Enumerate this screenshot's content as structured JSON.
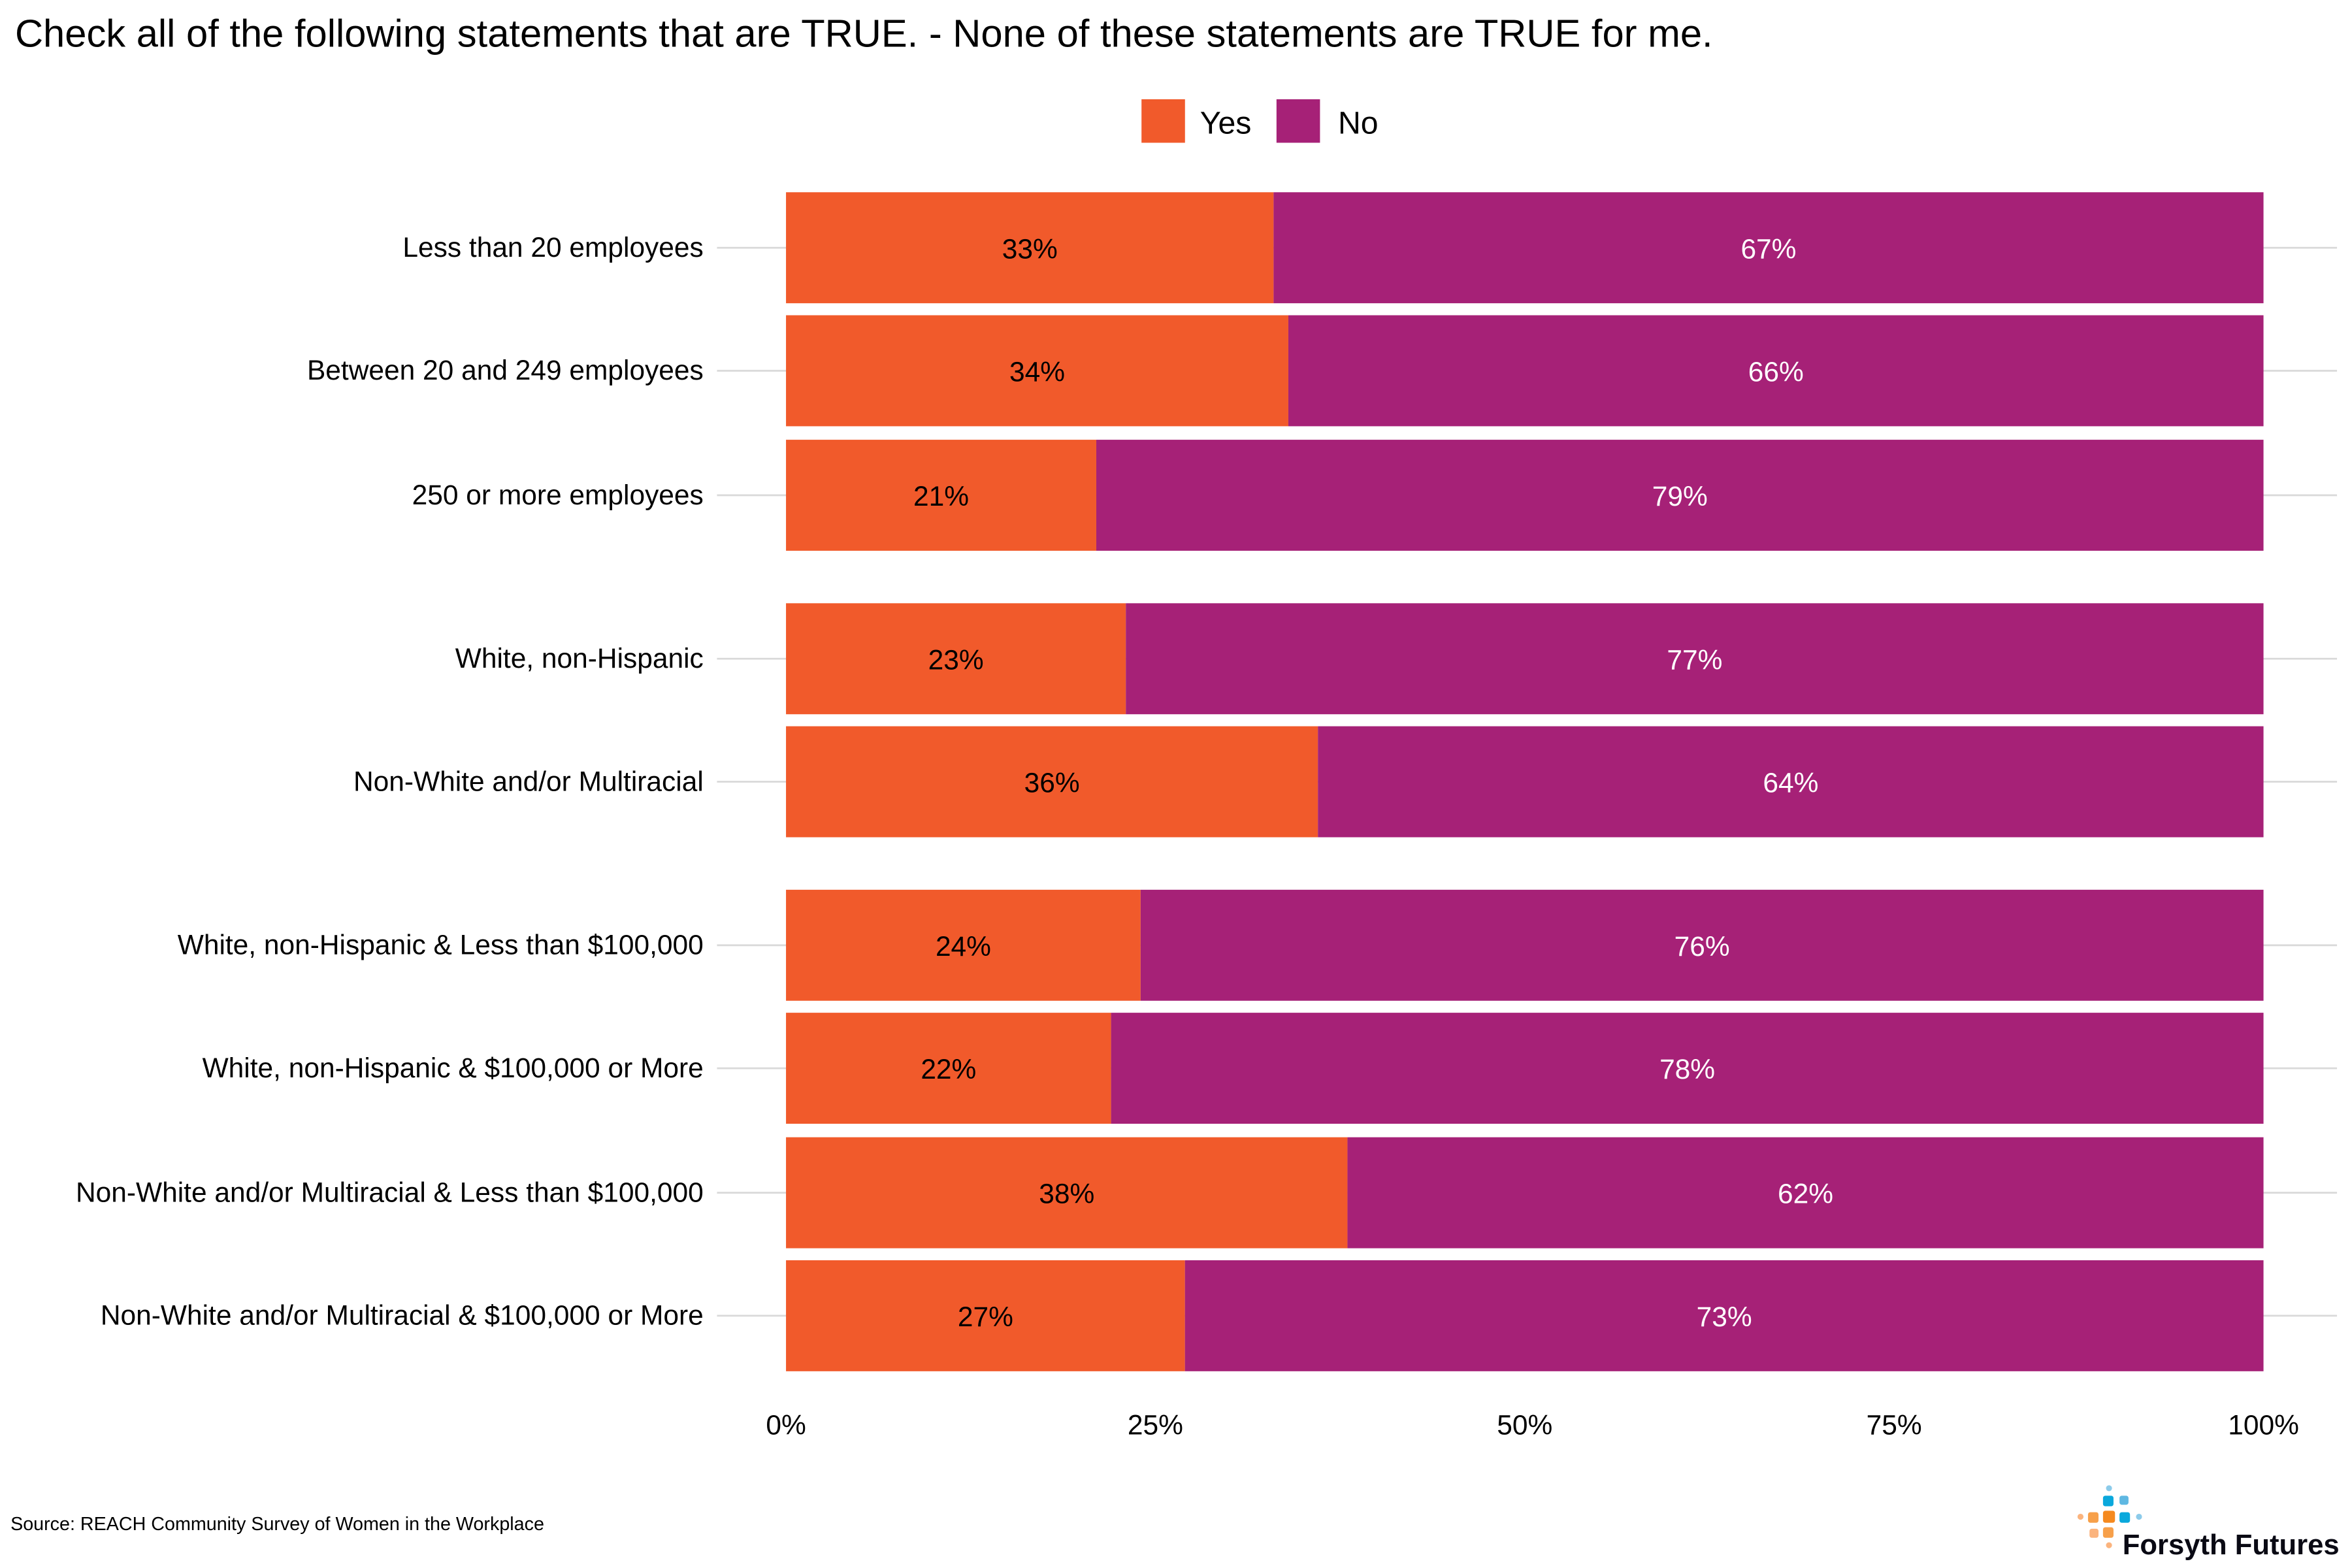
{
  "chart_data": {
    "type": "bar",
    "orientation": "horizontal",
    "stacked": true,
    "title": "Check all of the following statements that are TRUE. - None of these statements are TRUE for me.",
    "categories": [
      "Less than 20 employees",
      "Between 20 and 249 employees",
      "250 or more employees",
      "White, non-Hispanic",
      "Non-White and/or Multiracial",
      "White, non-Hispanic & Less than $100,000",
      "White, non-Hispanic & $100,000 or More",
      "Non-White and/or Multiracial & Less than $100,000",
      "Non-White and/or Multiracial & $100,000 or More"
    ],
    "groups": [
      [
        0,
        1,
        2
      ],
      [
        3,
        4
      ],
      [
        5,
        6,
        7,
        8
      ]
    ],
    "series": [
      {
        "name": "Yes",
        "color": "#F15A2B",
        "values": [
          33,
          34,
          21,
          23,
          36,
          24,
          22,
          38,
          27
        ]
      },
      {
        "name": "No",
        "color": "#A62177",
        "values": [
          67,
          66,
          79,
          77,
          64,
          76,
          78,
          62,
          73
        ]
      }
    ],
    "xlim": [
      0,
      100
    ],
    "xticks": [
      "0%",
      "25%",
      "50%",
      "75%",
      "100%"
    ],
    "xtick_values": [
      0,
      25,
      50,
      75,
      100
    ],
    "grid": "horizontal major lines",
    "legend_position": "top",
    "source": "Source: REACH Community Survey of Women in the Workplace",
    "logo_text": "Forsyth Futures"
  }
}
